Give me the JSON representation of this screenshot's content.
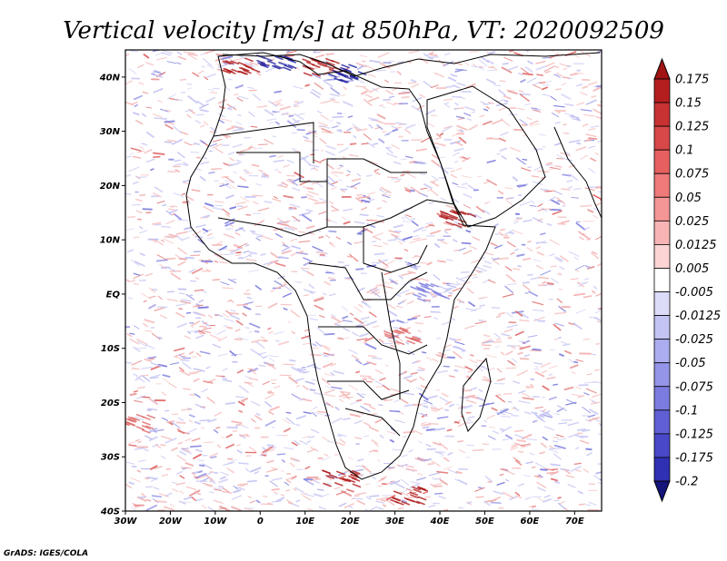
{
  "title": "Vertical velocity [m/s] at 850hPa, VT: 2020092509",
  "credit": "GrADS: IGES/COLA",
  "map": {
    "lon_range": [
      -30,
      76
    ],
    "lat_range": [
      -40,
      45
    ],
    "x_ticks": [
      {
        "lon": -30,
        "label": "30W"
      },
      {
        "lon": -20,
        "label": "20W"
      },
      {
        "lon": -10,
        "label": "10W"
      },
      {
        "lon": 0,
        "label": "0"
      },
      {
        "lon": 10,
        "label": "10E"
      },
      {
        "lon": 20,
        "label": "20E"
      },
      {
        "lon": 30,
        "label": "30E"
      },
      {
        "lon": 40,
        "label": "40E"
      },
      {
        "lon": 50,
        "label": "50E"
      },
      {
        "lon": 60,
        "label": "60E"
      },
      {
        "lon": 70,
        "label": "70E"
      }
    ],
    "y_ticks": [
      {
        "lat": 40,
        "label": "40N"
      },
      {
        "lat": 30,
        "label": "30N"
      },
      {
        "lat": 20,
        "label": "20N"
      },
      {
        "lat": 10,
        "label": "10N"
      },
      {
        "lat": 0,
        "label": "EQ"
      },
      {
        "lat": -10,
        "label": "10S"
      },
      {
        "lat": -20,
        "label": "20S"
      },
      {
        "lat": -30,
        "label": "30S"
      },
      {
        "lat": -40,
        "label": "40S"
      }
    ],
    "field_colors": {
      "neutral": "#ffffff",
      "up_light": "#f4b4b4",
      "up_mid": "#e06a6a",
      "up_strong": "#b01818",
      "down_light": "#c4c4f4",
      "down_mid": "#8080e0",
      "down_strong": "#2020a0"
    }
  },
  "colorbar": {
    "levels": [
      "0.175",
      "0.15",
      "0.125",
      "0.1",
      "0.075",
      "0.05",
      "0.025",
      "0.0125",
      "0.005",
      "-0.005",
      "-0.0125",
      "-0.025",
      "-0.05",
      "-0.075",
      "-0.1",
      "-0.125",
      "-0.175",
      "-0.2"
    ],
    "colors": [
      "#b41e1e",
      "#c83232",
      "#d84848",
      "#e66060",
      "#ee7a7a",
      "#f49696",
      "#f8b4b4",
      "#fcd4d4",
      "#ffffff",
      "#dcdcf8",
      "#c4c4f4",
      "#acacf0",
      "#9494e8",
      "#7c7ce0",
      "#6060d4",
      "#4848c8",
      "#3030b4",
      "#1e1e9e"
    ],
    "top_arrow_color": "#a01414",
    "bottom_arrow_color": "#14147a"
  }
}
